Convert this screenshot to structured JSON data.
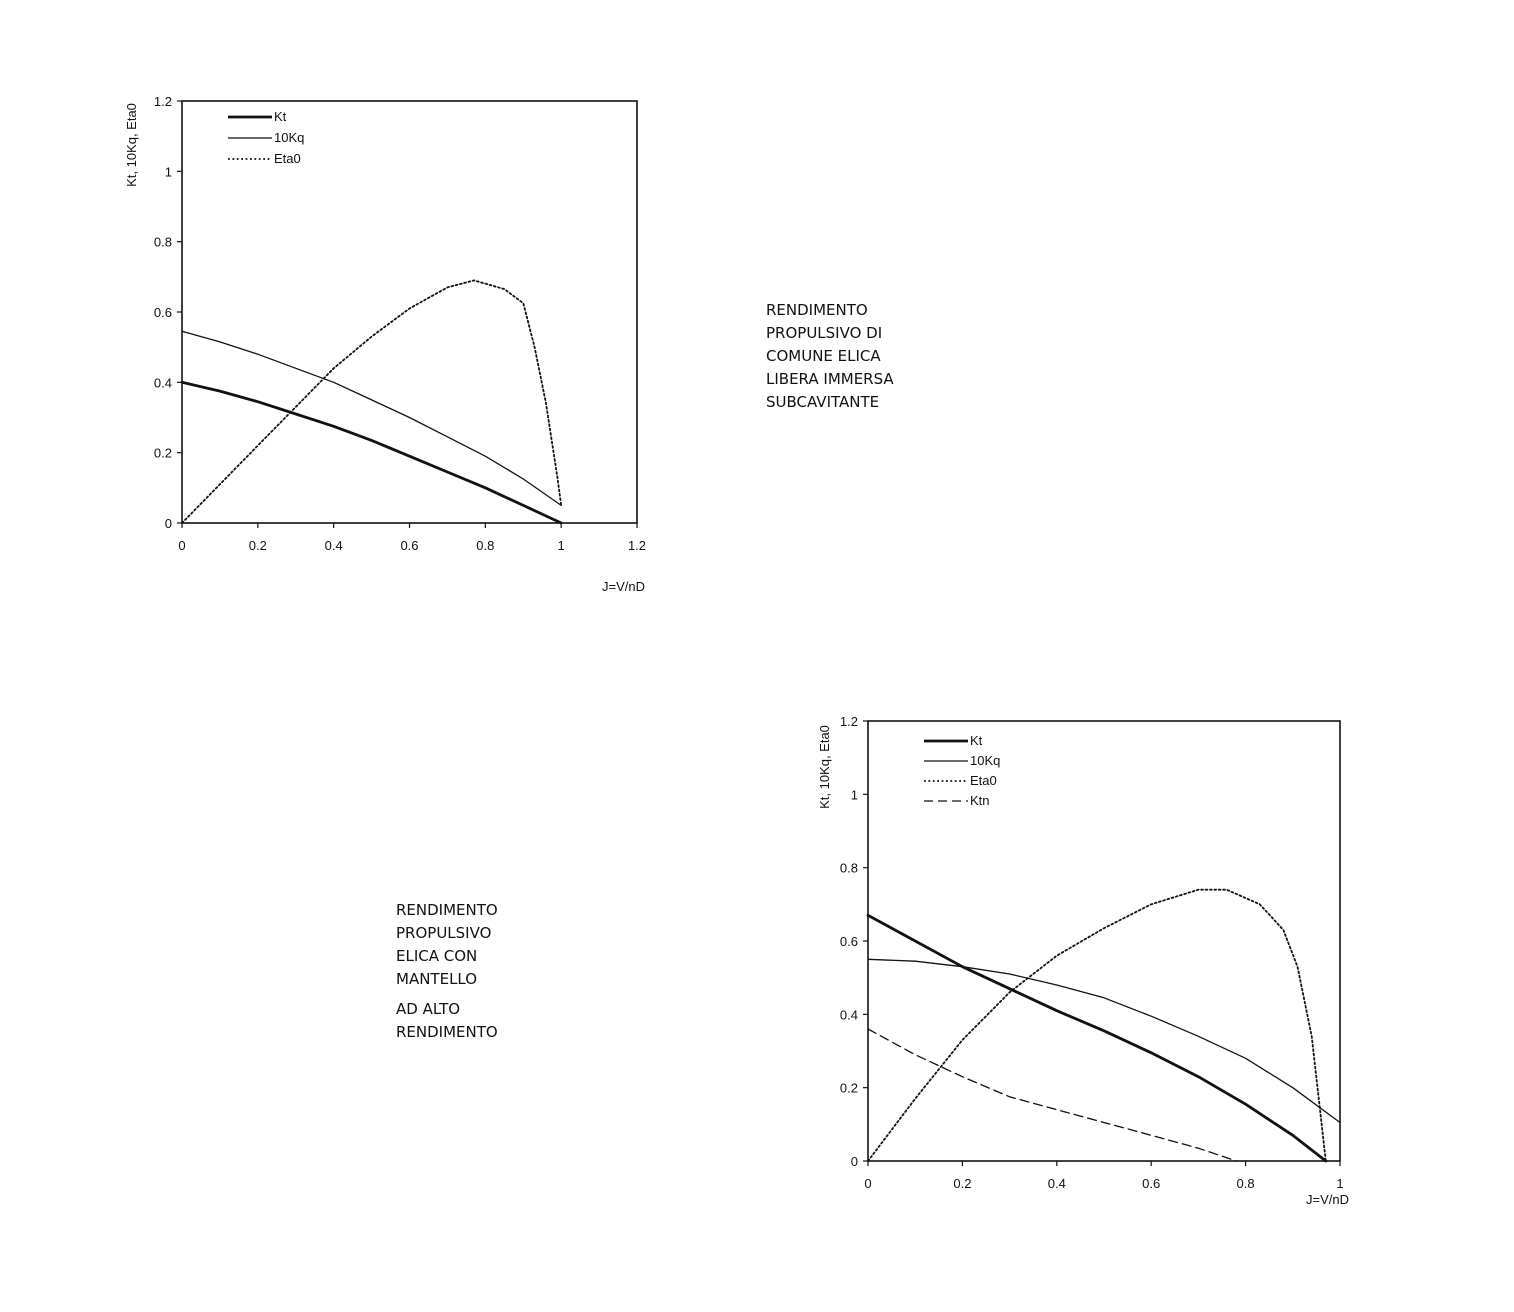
{
  "captions": {
    "top": [
      "RENDIMENTO",
      "PROPULSIVO DI",
      "COMUNE ELICA",
      "LIBERA IMMERSA",
      "SUBCAVITANTE"
    ],
    "bottom": [
      "RENDIMENTO",
      "PROPULSIVO",
      "ELICA CON",
      "MANTELLO",
      "AD ALTO",
      "RENDIMENTO"
    ]
  },
  "chart_data": [
    {
      "type": "line",
      "ylabel": "Kt, 10Kq, Eta0",
      "xlabel": "J=V/nD",
      "xlim": [
        0,
        1.2
      ],
      "ylim": [
        0,
        1.2
      ],
      "xticks": [
        "0",
        "0.2",
        "0.4",
        "0.6",
        "0.8",
        "1",
        "1.2"
      ],
      "yticks": [
        "0",
        "0.2",
        "0.4",
        "0.6",
        "0.8",
        "1",
        "1.2"
      ],
      "grid": false,
      "legend_position": "top-left",
      "series": [
        {
          "name": "Kt",
          "style": "thick",
          "x": [
            0,
            0.1,
            0.2,
            0.3,
            0.4,
            0.5,
            0.6,
            0.7,
            0.8,
            0.9,
            1.0
          ],
          "y": [
            0.4,
            0.375,
            0.345,
            0.31,
            0.275,
            0.235,
            0.19,
            0.145,
            0.1,
            0.05,
            0.0
          ]
        },
        {
          "name": "10Kq",
          "style": "solid",
          "x": [
            0,
            0.1,
            0.2,
            0.3,
            0.4,
            0.5,
            0.6,
            0.7,
            0.8,
            0.9,
            1.0
          ],
          "y": [
            0.545,
            0.515,
            0.48,
            0.44,
            0.4,
            0.35,
            0.3,
            0.245,
            0.19,
            0.125,
            0.05
          ]
        },
        {
          "name": "Eta0",
          "style": "dotted",
          "x": [
            0,
            0.1,
            0.2,
            0.3,
            0.4,
            0.5,
            0.6,
            0.7,
            0.77,
            0.85,
            0.9,
            0.93,
            0.96,
            0.99,
            1.0
          ],
          "y": [
            0.0,
            0.11,
            0.22,
            0.33,
            0.44,
            0.53,
            0.61,
            0.67,
            0.69,
            0.665,
            0.625,
            0.5,
            0.34,
            0.13,
            0.05
          ]
        }
      ]
    },
    {
      "type": "line",
      "ylabel": "Kt, 10Kq, Eta0",
      "xlabel": "J=V/nD",
      "xlim": [
        0,
        1
      ],
      "ylim": [
        0,
        1.2
      ],
      "xticks": [
        "0",
        "0.2",
        "0.4",
        "0.6",
        "0.8",
        "1"
      ],
      "yticks": [
        "0",
        "0.2",
        "0.4",
        "0.6",
        "0.8",
        "1",
        "1.2"
      ],
      "grid": false,
      "legend_position": "top-left",
      "series": [
        {
          "name": "Kt",
          "style": "thick",
          "x": [
            0,
            0.1,
            0.2,
            0.3,
            0.4,
            0.5,
            0.6,
            0.7,
            0.8,
            0.9,
            0.97
          ],
          "y": [
            0.67,
            0.6,
            0.53,
            0.47,
            0.41,
            0.355,
            0.295,
            0.23,
            0.155,
            0.07,
            0.0
          ]
        },
        {
          "name": "10Kq",
          "style": "solid",
          "x": [
            0,
            0.1,
            0.2,
            0.3,
            0.4,
            0.5,
            0.6,
            0.7,
            0.8,
            0.9,
            1.0
          ],
          "y": [
            0.55,
            0.545,
            0.53,
            0.51,
            0.48,
            0.445,
            0.395,
            0.34,
            0.28,
            0.2,
            0.105
          ]
        },
        {
          "name": "Eta0",
          "style": "dotted",
          "x": [
            0,
            0.1,
            0.2,
            0.3,
            0.4,
            0.5,
            0.6,
            0.7,
            0.76,
            0.83,
            0.88,
            0.91,
            0.94,
            0.97
          ],
          "y": [
            0.0,
            0.17,
            0.33,
            0.46,
            0.56,
            0.635,
            0.7,
            0.74,
            0.74,
            0.7,
            0.63,
            0.53,
            0.34,
            0.0
          ]
        },
        {
          "name": "Ktn",
          "style": "dashed",
          "x": [
            0,
            0.1,
            0.2,
            0.3,
            0.4,
            0.5,
            0.6,
            0.7,
            0.78
          ],
          "y": [
            0.36,
            0.29,
            0.23,
            0.175,
            0.14,
            0.105,
            0.07,
            0.035,
            0.0
          ]
        }
      ]
    }
  ]
}
